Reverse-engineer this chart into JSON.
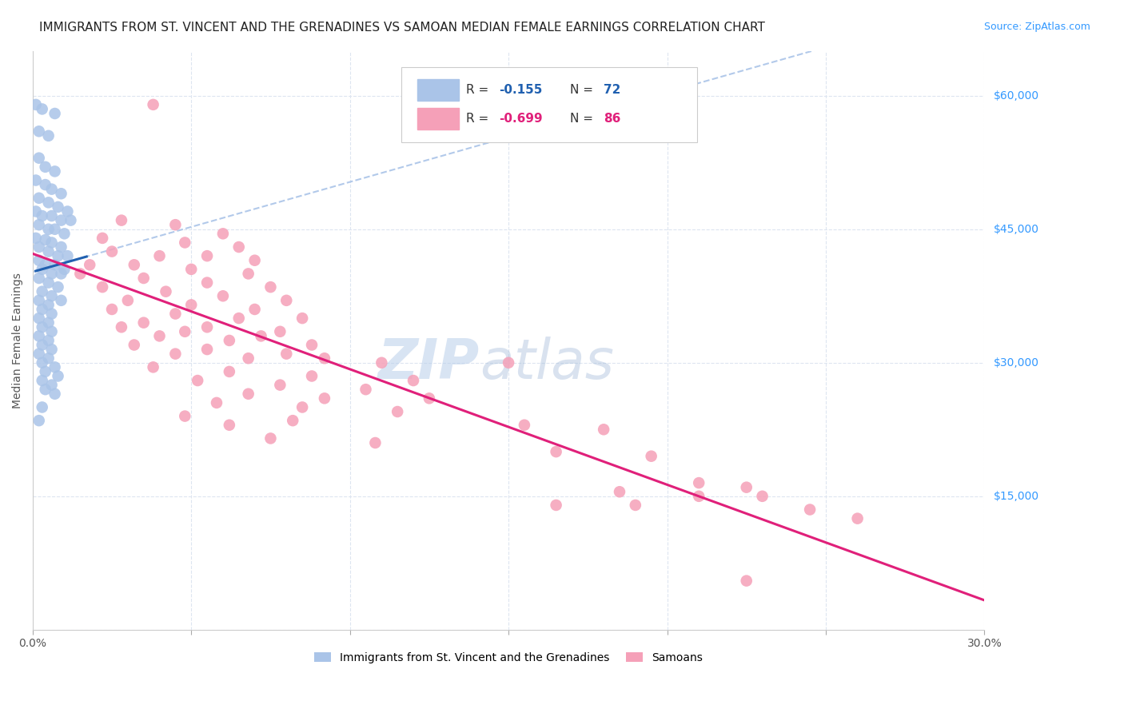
{
  "title": "IMMIGRANTS FROM ST. VINCENT AND THE GRENADINES VS SAMOAN MEDIAN FEMALE EARNINGS CORRELATION CHART",
  "source": "Source: ZipAtlas.com",
  "ylabel": "Median Female Earnings",
  "xlim": [
    0.0,
    0.3
  ],
  "ylim": [
    0,
    65000
  ],
  "x_ticks": [
    0.0,
    0.05,
    0.1,
    0.15,
    0.2,
    0.25,
    0.3
  ],
  "y_ticks": [
    0,
    15000,
    30000,
    45000,
    60000
  ],
  "y_tick_labels": [
    "",
    "$15,000",
    "$30,000",
    "$45,000",
    "$60,000"
  ],
  "blue_color": "#aac4e8",
  "pink_color": "#f5a0b8",
  "blue_line_color": "#2060b0",
  "pink_line_color": "#e0207a",
  "blue_scatter": [
    [
      0.001,
      59000
    ],
    [
      0.003,
      58500
    ],
    [
      0.007,
      58000
    ],
    [
      0.002,
      56000
    ],
    [
      0.005,
      55500
    ],
    [
      0.002,
      53000
    ],
    [
      0.004,
      52000
    ],
    [
      0.007,
      51500
    ],
    [
      0.001,
      50500
    ],
    [
      0.004,
      50000
    ],
    [
      0.006,
      49500
    ],
    [
      0.009,
      49000
    ],
    [
      0.002,
      48500
    ],
    [
      0.005,
      48000
    ],
    [
      0.008,
      47500
    ],
    [
      0.011,
      47000
    ],
    [
      0.001,
      47000
    ],
    [
      0.003,
      46500
    ],
    [
      0.006,
      46500
    ],
    [
      0.009,
      46000
    ],
    [
      0.012,
      46000
    ],
    [
      0.002,
      45500
    ],
    [
      0.005,
      45000
    ],
    [
      0.007,
      45000
    ],
    [
      0.01,
      44500
    ],
    [
      0.001,
      44000
    ],
    [
      0.004,
      43800
    ],
    [
      0.006,
      43500
    ],
    [
      0.009,
      43000
    ],
    [
      0.002,
      43000
    ],
    [
      0.005,
      42500
    ],
    [
      0.008,
      42000
    ],
    [
      0.011,
      42000
    ],
    [
      0.002,
      41500
    ],
    [
      0.004,
      41000
    ],
    [
      0.007,
      41000
    ],
    [
      0.01,
      40500
    ],
    [
      0.003,
      40500
    ],
    [
      0.006,
      40000
    ],
    [
      0.009,
      40000
    ],
    [
      0.002,
      39500
    ],
    [
      0.005,
      39000
    ],
    [
      0.008,
      38500
    ],
    [
      0.003,
      38000
    ],
    [
      0.006,
      37500
    ],
    [
      0.009,
      37000
    ],
    [
      0.002,
      37000
    ],
    [
      0.005,
      36500
    ],
    [
      0.003,
      36000
    ],
    [
      0.006,
      35500
    ],
    [
      0.002,
      35000
    ],
    [
      0.005,
      34500
    ],
    [
      0.003,
      34000
    ],
    [
      0.006,
      33500
    ],
    [
      0.002,
      33000
    ],
    [
      0.005,
      32500
    ],
    [
      0.003,
      32000
    ],
    [
      0.006,
      31500
    ],
    [
      0.002,
      31000
    ],
    [
      0.005,
      30500
    ],
    [
      0.003,
      30000
    ],
    [
      0.007,
      29500
    ],
    [
      0.004,
      29000
    ],
    [
      0.008,
      28500
    ],
    [
      0.003,
      28000
    ],
    [
      0.006,
      27500
    ],
    [
      0.004,
      27000
    ],
    [
      0.007,
      26500
    ],
    [
      0.003,
      25000
    ],
    [
      0.002,
      23500
    ]
  ],
  "pink_scatter": [
    [
      0.038,
      59000
    ],
    [
      0.028,
      46000
    ],
    [
      0.045,
      45500
    ],
    [
      0.06,
      44500
    ],
    [
      0.022,
      44000
    ],
    [
      0.048,
      43500
    ],
    [
      0.065,
      43000
    ],
    [
      0.025,
      42500
    ],
    [
      0.04,
      42000
    ],
    [
      0.055,
      42000
    ],
    [
      0.07,
      41500
    ],
    [
      0.018,
      41000
    ],
    [
      0.032,
      41000
    ],
    [
      0.05,
      40500
    ],
    [
      0.068,
      40000
    ],
    [
      0.015,
      40000
    ],
    [
      0.035,
      39500
    ],
    [
      0.055,
      39000
    ],
    [
      0.075,
      38500
    ],
    [
      0.022,
      38500
    ],
    [
      0.042,
      38000
    ],
    [
      0.06,
      37500
    ],
    [
      0.08,
      37000
    ],
    [
      0.03,
      37000
    ],
    [
      0.05,
      36500
    ],
    [
      0.07,
      36000
    ],
    [
      0.025,
      36000
    ],
    [
      0.045,
      35500
    ],
    [
      0.065,
      35000
    ],
    [
      0.085,
      35000
    ],
    [
      0.035,
      34500
    ],
    [
      0.055,
      34000
    ],
    [
      0.078,
      33500
    ],
    [
      0.028,
      34000
    ],
    [
      0.048,
      33500
    ],
    [
      0.072,
      33000
    ],
    [
      0.04,
      33000
    ],
    [
      0.062,
      32500
    ],
    [
      0.088,
      32000
    ],
    [
      0.032,
      32000
    ],
    [
      0.055,
      31500
    ],
    [
      0.08,
      31000
    ],
    [
      0.045,
      31000
    ],
    [
      0.068,
      30500
    ],
    [
      0.092,
      30500
    ],
    [
      0.11,
      30000
    ],
    [
      0.15,
      30000
    ],
    [
      0.038,
      29500
    ],
    [
      0.062,
      29000
    ],
    [
      0.088,
      28500
    ],
    [
      0.12,
      28000
    ],
    [
      0.052,
      28000
    ],
    [
      0.078,
      27500
    ],
    [
      0.105,
      27000
    ],
    [
      0.068,
      26500
    ],
    [
      0.092,
      26000
    ],
    [
      0.125,
      26000
    ],
    [
      0.058,
      25500
    ],
    [
      0.085,
      25000
    ],
    [
      0.115,
      24500
    ],
    [
      0.048,
      24000
    ],
    [
      0.082,
      23500
    ],
    [
      0.062,
      23000
    ],
    [
      0.155,
      23000
    ],
    [
      0.18,
      22500
    ],
    [
      0.075,
      21500
    ],
    [
      0.108,
      21000
    ],
    [
      0.165,
      20000
    ],
    [
      0.195,
      19500
    ],
    [
      0.21,
      16500
    ],
    [
      0.225,
      16000
    ],
    [
      0.185,
      15500
    ],
    [
      0.21,
      15000
    ],
    [
      0.23,
      15000
    ],
    [
      0.165,
      14000
    ],
    [
      0.19,
      14000
    ],
    [
      0.245,
      13500
    ],
    [
      0.26,
      12500
    ],
    [
      0.225,
      5500
    ]
  ],
  "watermark_zip": "ZIP",
  "watermark_atlas": "atlas",
  "background_color": "#ffffff",
  "grid_color": "#dde5f0",
  "title_fontsize": 11,
  "axis_label_fontsize": 10,
  "tick_fontsize": 10,
  "legend_fontsize": 11,
  "source_fontsize": 9
}
